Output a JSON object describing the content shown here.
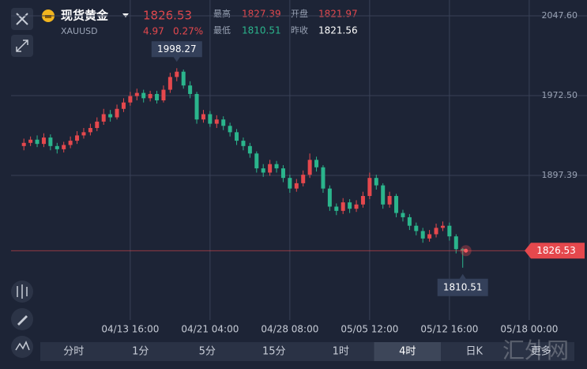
{
  "header": {
    "title": "现货黄金",
    "symbol": "XAUUSD",
    "price": 1826.53,
    "change": 4.97,
    "change_pct": "0.27%",
    "stats": [
      {
        "label": "最高",
        "value": 1827.39
      },
      {
        "label": "开盘",
        "value": 1821.97
      },
      {
        "label": "最低",
        "value": 1810.51
      },
      {
        "label": "昨收",
        "value": 1821.56
      }
    ]
  },
  "chart_data": {
    "type": "candlestick",
    "categories": [
      null,
      null,
      null,
      null,
      null,
      null,
      null,
      null,
      null,
      null,
      null,
      null,
      null,
      null,
      null,
      null,
      "04/13 16:00",
      null,
      null,
      null,
      null,
      null,
      null,
      null,
      null,
      null,
      null,
      null,
      "04/21 04:00",
      null,
      null,
      null,
      null,
      null,
      null,
      null,
      null,
      null,
      null,
      null,
      "04/28 08:00",
      null,
      null,
      null,
      null,
      null,
      null,
      null,
      null,
      null,
      null,
      null,
      "05/05 12:00",
      null,
      null,
      null,
      null,
      null,
      null,
      null,
      null,
      null,
      null,
      null,
      "05/12 16:00",
      null,
      null,
      null,
      null,
      null,
      null,
      null,
      null,
      null,
      null,
      null,
      "05/18 00:00",
      null,
      null,
      null
    ],
    "open": [
      1925,
      1928,
      1931,
      1927,
      1933,
      1925,
      1922,
      1926,
      1930,
      1935,
      1938,
      1942,
      1948,
      1955,
      1952,
      1960,
      1966,
      1972,
      1975,
      1970,
      1974,
      1968,
      1978,
      1990,
      1995,
      1982,
      1974,
      1950,
      1955,
      1946,
      1950,
      1944,
      1938,
      1930,
      1925,
      1918,
      1904,
      1900,
      1908,
      1904,
      1895,
      1885,
      1890,
      1898,
      1912,
      1905,
      1885,
      1868,
      1864,
      1872,
      1866,
      1870,
      1878,
      1895,
      1888,
      1870,
      1878,
      1862,
      1858,
      1850,
      1845,
      1838,
      1842,
      1848,
      1850,
      1840,
      1828,
      null,
      null,
      null,
      null,
      null,
      null,
      null,
      null,
      null,
      null,
      null,
      null,
      null
    ],
    "high": [
      1932,
      1934,
      1935,
      1937,
      1936,
      1928,
      1929,
      1934,
      1939,
      1942,
      1946,
      1952,
      1960,
      1959,
      1964,
      1970,
      1976,
      1979,
      1978,
      1977,
      1977,
      1982,
      1994,
      1998.27,
      1997,
      1986,
      1976,
      1959,
      1958,
      1954,
      1953,
      1947,
      1941,
      1933,
      1928,
      1920,
      1908,
      1912,
      1911,
      1907,
      1898,
      1894,
      1902,
      1918,
      1915,
      1907,
      1888,
      1871,
      1876,
      1875,
      1874,
      1882,
      1900,
      1898,
      1890,
      1882,
      1880,
      1865,
      1861,
      1853,
      1848,
      1846,
      1852,
      1854,
      1853,
      1842,
      1829,
      null,
      null,
      null,
      null,
      null,
      null,
      null,
      null,
      null,
      null,
      null,
      null,
      null
    ],
    "low": [
      1921,
      1925,
      1924,
      1924,
      1921,
      1918,
      1919,
      1923,
      1927,
      1932,
      1935,
      1939,
      1945,
      1948,
      1950,
      1957,
      1963,
      1968,
      1966,
      1967,
      1965,
      1966,
      1975,
      1986,
      1979,
      1970,
      1946,
      1947,
      1943,
      1942,
      1940,
      1934,
      1926,
      1921,
      1914,
      1900,
      1896,
      1897,
      1900,
      1891,
      1881,
      1882,
      1887,
      1895,
      1901,
      1881,
      1864,
      1860,
      1861,
      1862,
      1863,
      1867,
      1875,
      1884,
      1866,
      1867,
      1858,
      1854,
      1846,
      1841,
      1834,
      1835,
      1839,
      1845,
      1836,
      1824,
      1810.51,
      null,
      null,
      null,
      null,
      null,
      null,
      null,
      null,
      null,
      null,
      null,
      null,
      null
    ],
    "close": [
      1928,
      1931,
      1927,
      1933,
      1925,
      1922,
      1926,
      1930,
      1935,
      1938,
      1942,
      1948,
      1955,
      1952,
      1960,
      1966,
      1972,
      1975,
      1970,
      1974,
      1968,
      1978,
      1990,
      1995,
      1982,
      1974,
      1950,
      1955,
      1946,
      1950,
      1944,
      1938,
      1930,
      1925,
      1918,
      1904,
      1900,
      1908,
      1904,
      1895,
      1885,
      1890,
      1898,
      1912,
      1905,
      1885,
      1868,
      1864,
      1872,
      1866,
      1870,
      1878,
      1895,
      1888,
      1870,
      1878,
      1862,
      1858,
      1850,
      1845,
      1838,
      1842,
      1848,
      1850,
      1840,
      1828,
      1826.53,
      null,
      null,
      null,
      null,
      null,
      null,
      null,
      null,
      null,
      null,
      null,
      null,
      null
    ],
    "up_color": "#e5484d",
    "down_color": "#2bb58c",
    "ylim": [
      1765,
      2056.5
    ],
    "yticks": [
      {
        "value": 2047.6,
        "label": "2047.60"
      },
      {
        "value": 1972.5,
        "label": "1972.50"
      },
      {
        "value": 1897.39,
        "label": "1897.39"
      }
    ],
    "grid": true
  },
  "toolbar": {
    "tabs": [
      "分时",
      "1分",
      "5分",
      "15分",
      "1时",
      "4时",
      "日K",
      "更多"
    ],
    "active": 5
  },
  "watermark": "汇外网"
}
